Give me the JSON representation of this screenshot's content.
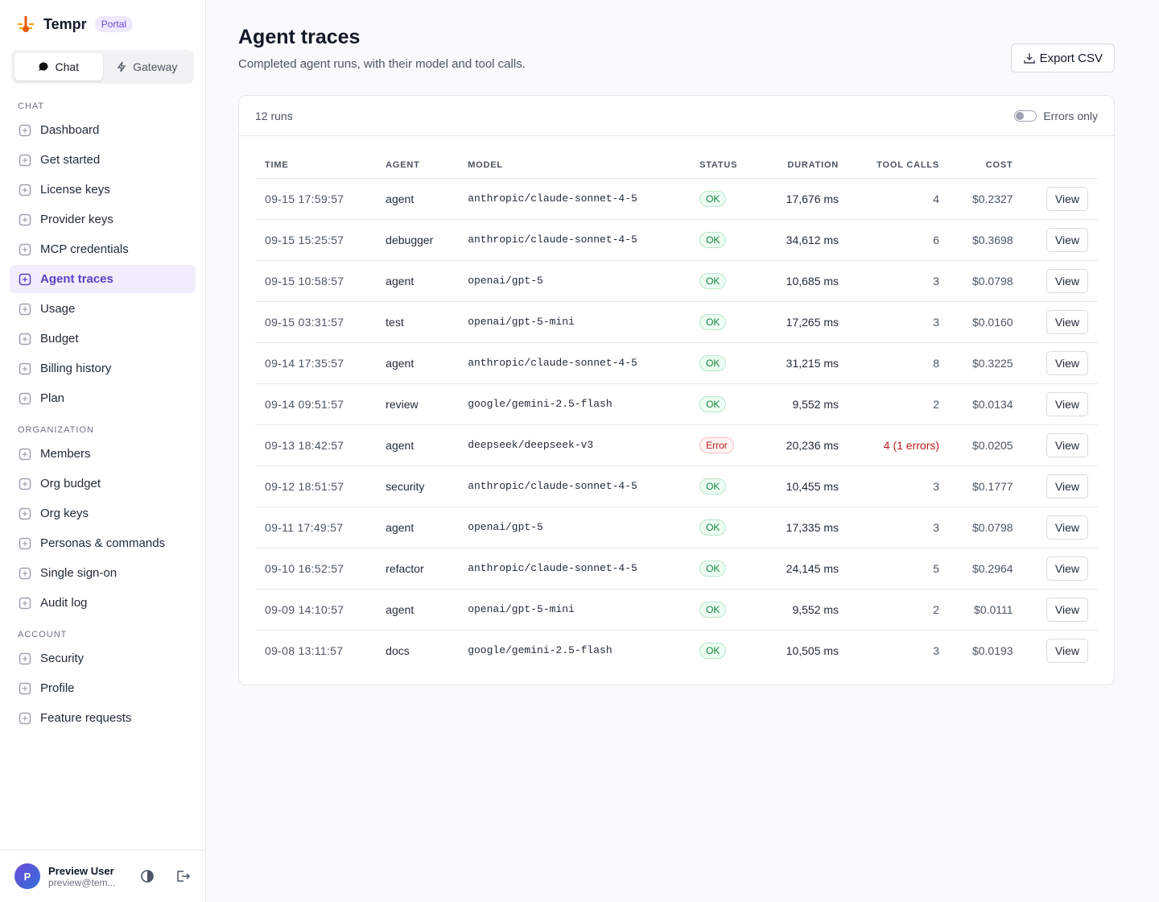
{
  "sidebar": {
    "brand": "Tempr",
    "badge": "Portal",
    "tabs": [
      "Chat",
      "Gateway"
    ],
    "sections": [
      {
        "title": "CHAT",
        "items": [
          "Dashboard",
          "Get started",
          "License keys",
          "Provider keys",
          "MCP credentials",
          "Agent traces",
          "Usage",
          "Budget",
          "Billing history",
          "Plan"
        ]
      },
      {
        "title": "ORGANIZATION",
        "items": [
          "Members",
          "Org budget",
          "Org keys",
          "Personas & commands",
          "Single sign-on",
          "Audit log"
        ]
      },
      {
        "title": "ACCOUNT",
        "items": [
          "Security",
          "Profile",
          "Feature requests"
        ]
      }
    ],
    "user": {
      "initial": "P",
      "name": "Preview User",
      "email": "preview@tem..."
    }
  },
  "header": {
    "title": "Agent traces",
    "subtitle": "Completed agent runs, with their model and tool calls.",
    "export": "Export CSV"
  },
  "table": {
    "count": "12 runs",
    "toggle": "Errors only",
    "columns": [
      "TIME",
      "AGENT",
      "MODEL",
      "STATUS",
      "DURATION",
      "TOOL CALLS",
      "COST"
    ],
    "action": "View",
    "rows": [
      [
        "09-15 17:59:57",
        "agent",
        "anthropic/claude-sonnet-4-5",
        "OK",
        "17,676 ms",
        "4",
        "$0.2327"
      ],
      [
        "09-15 15:25:57",
        "debugger",
        "anthropic/claude-sonnet-4-5",
        "OK",
        "34,612 ms",
        "6",
        "$0.3698"
      ],
      [
        "09-15 10:58:57",
        "agent",
        "openai/gpt-5",
        "OK",
        "10,685 ms",
        "3",
        "$0.0798"
      ],
      [
        "09-15 03:31:57",
        "test",
        "openai/gpt-5-mini",
        "OK",
        "17,265 ms",
        "3",
        "$0.0160"
      ],
      [
        "09-14 17:35:57",
        "agent",
        "anthropic/claude-sonnet-4-5",
        "OK",
        "31,215 ms",
        "8",
        "$0.3225"
      ],
      [
        "09-14 09:51:57",
        "review",
        "google/gemini-2.5-flash",
        "OK",
        "9,552 ms",
        "2",
        "$0.0134"
      ],
      [
        "09-13 18:42:57",
        "agent",
        "deepseek/deepseek-v3",
        "Error",
        "20,236 ms",
        "4 (1 errors)",
        "$0.0205"
      ],
      [
        "09-12 18:51:57",
        "security",
        "anthropic/claude-sonnet-4-5",
        "OK",
        "10,455 ms",
        "3",
        "$0.1777"
      ],
      [
        "09-11 17:49:57",
        "agent",
        "openai/gpt-5",
        "OK",
        "17,335 ms",
        "3",
        "$0.0798"
      ],
      [
        "09-10 16:52:57",
        "refactor",
        "anthropic/claude-sonnet-4-5",
        "OK",
        "24,145 ms",
        "5",
        "$0.2964"
      ],
      [
        "09-09 14:10:57",
        "agent",
        "openai/gpt-5-mini",
        "OK",
        "9,552 ms",
        "2",
        "$0.0111"
      ],
      [
        "09-08 13:11:57",
        "docs",
        "google/gemini-2.5-flash",
        "OK",
        "10,505 ms",
        "3",
        "$0.0193"
      ]
    ]
  }
}
